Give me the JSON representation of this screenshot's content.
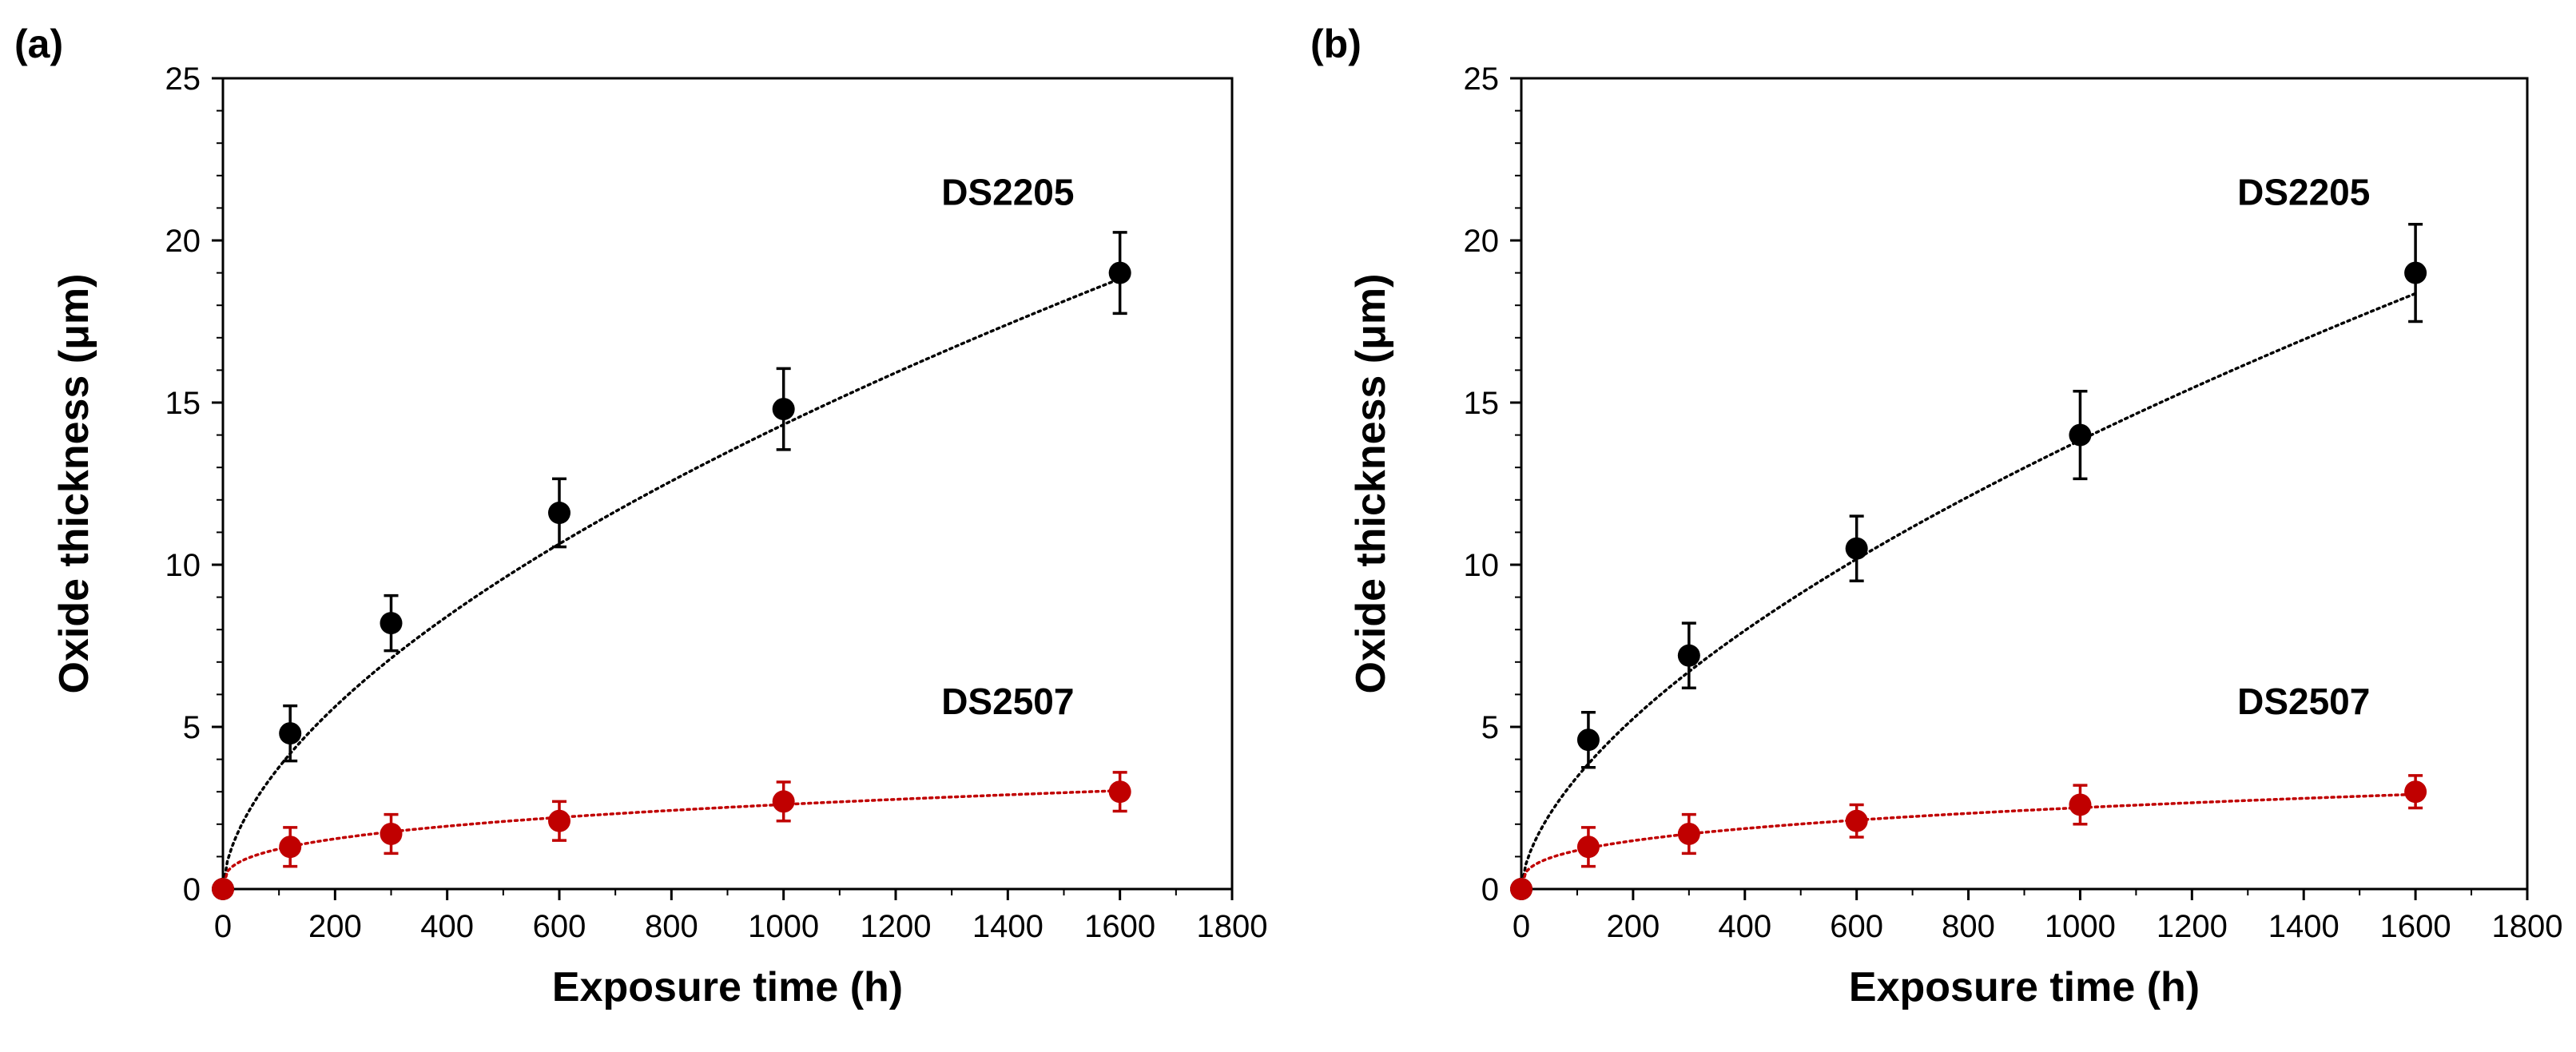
{
  "chart_data": [
    {
      "type": "scatter",
      "panel_label": "(a)",
      "xlabel": "Exposure time (h)",
      "ylabel": "Oxide thickness (μm)",
      "xlim": [
        0,
        1800
      ],
      "ylim": [
        0,
        25
      ],
      "xticks": [
        0,
        200,
        400,
        600,
        800,
        1000,
        1200,
        1400,
        1600,
        1800
      ],
      "yticks": [
        0,
        5,
        10,
        15,
        20,
        25
      ],
      "grid": false,
      "series": [
        {
          "name": "DS2205",
          "color": "#000000",
          "label_at": {
            "x": 1400,
            "y": 21.1
          },
          "x": [
            0,
            120,
            300,
            600,
            1000,
            1600
          ],
          "y": [
            0,
            4.8,
            8.2,
            11.6,
            14.8,
            19.0
          ],
          "err": [
            0,
            0.85,
            0.85,
            1.05,
            1.25,
            1.25
          ],
          "fit": {
            "type": "power",
            "a": 0.2588,
            "b": 0.581
          }
        },
        {
          "name": "DS2507",
          "color": "#c00000",
          "label_at": {
            "x": 1400,
            "y": 5.4
          },
          "x": [
            0,
            120,
            300,
            600,
            1000,
            1600
          ],
          "y": [
            0,
            1.3,
            1.7,
            2.1,
            2.7,
            3.0
          ],
          "err": [
            0,
            0.6,
            0.6,
            0.6,
            0.6,
            0.6
          ],
          "fit": {
            "type": "power",
            "a": 0.279,
            "b": 0.3235
          }
        }
      ]
    },
    {
      "type": "scatter",
      "panel_label": "(b)",
      "xlabel": "Exposure time (h)",
      "ylabel": "Oxide thickness (μm)",
      "xlim": [
        0,
        1800
      ],
      "ylim": [
        0,
        25
      ],
      "xticks": [
        0,
        200,
        400,
        600,
        800,
        1000,
        1200,
        1400,
        1600,
        1800
      ],
      "yticks": [
        0,
        5,
        10,
        15,
        20,
        25
      ],
      "grid": false,
      "series": [
        {
          "name": "DS2205",
          "color": "#000000",
          "label_at": {
            "x": 1400,
            "y": 21.1
          },
          "x": [
            0,
            120,
            300,
            600,
            1000,
            1600
          ],
          "y": [
            0,
            4.6,
            7.2,
            10.5,
            14.0,
            19.0
          ],
          "err": [
            0,
            0.85,
            1.0,
            1.0,
            1.35,
            1.5
          ],
          "fit": {
            "type": "power",
            "a": 0.2163,
            "b": 0.602
          }
        },
        {
          "name": "DS2507",
          "color": "#c00000",
          "label_at": {
            "x": 1400,
            "y": 5.4
          },
          "x": [
            0,
            120,
            300,
            600,
            1000,
            1600
          ],
          "y": [
            0,
            1.3,
            1.7,
            2.1,
            2.6,
            3.0
          ],
          "err": [
            0,
            0.6,
            0.6,
            0.5,
            0.6,
            0.5
          ],
          "fit": {
            "type": "power",
            "a": 0.2685,
            "b": 0.3235
          }
        }
      ]
    }
  ]
}
